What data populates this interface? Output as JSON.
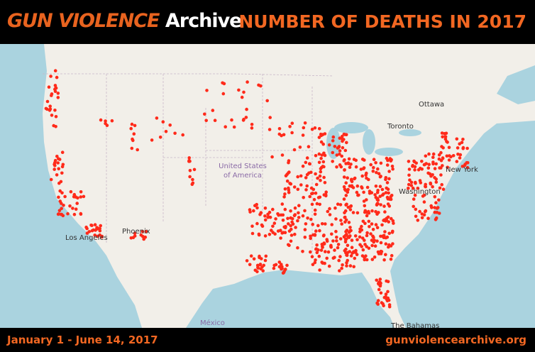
{
  "header": {
    "logo": {
      "brand": "GUN VIOLENCE",
      "suffix": "Archive"
    },
    "title": "NUMBER OF DEATHS IN 2017"
  },
  "footer": {
    "date_range": "January 1 - June 14, 2017",
    "url": "gunviolencearchive.org"
  },
  "map": {
    "labels": [
      "Ottawa",
      "Toronto",
      "United States",
      "of America",
      "New York",
      "Washington",
      "Los Angeles",
      "Phoenix",
      "México",
      "The Bahamas"
    ]
  }
}
